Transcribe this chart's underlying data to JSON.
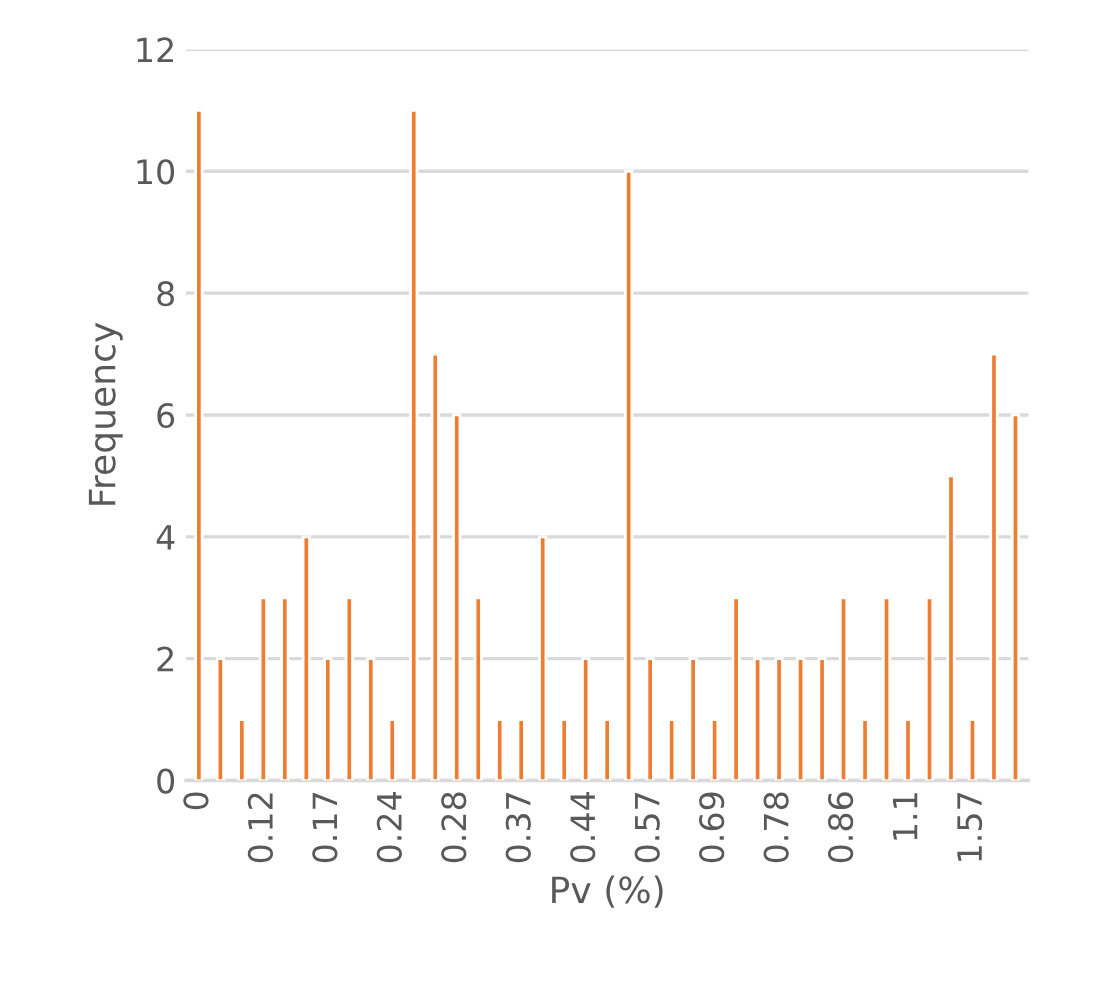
{
  "chart_data": {
    "type": "bar",
    "xlabel": "Pv (%)",
    "ylabel": "Frequency",
    "categories": [
      "0",
      null,
      null,
      "0.12",
      null,
      null,
      "0.17",
      null,
      null,
      "0.24",
      null,
      null,
      "0.28",
      null,
      null,
      "0.37",
      null,
      null,
      "0.44",
      null,
      null,
      "0.57",
      null,
      null,
      "0.69",
      null,
      null,
      "0.78",
      null,
      null,
      "0.86",
      null,
      null,
      "1.1",
      null,
      null,
      "1.57",
      null,
      null
    ],
    "values": [
      11,
      2,
      1,
      3,
      3,
      4,
      2,
      3,
      2,
      1,
      11,
      7,
      6,
      3,
      1,
      1,
      4,
      1,
      2,
      1,
      10,
      2,
      1,
      2,
      1,
      3,
      2,
      2,
      2,
      2,
      3,
      1,
      3,
      1,
      3,
      5,
      1,
      7,
      6
    ],
    "color": "#ed7d31",
    "ylim": [
      0,
      12
    ],
    "yticks": [
      0,
      2,
      4,
      6,
      8,
      10,
      12
    ],
    "grid": "y",
    "legend": false
  }
}
